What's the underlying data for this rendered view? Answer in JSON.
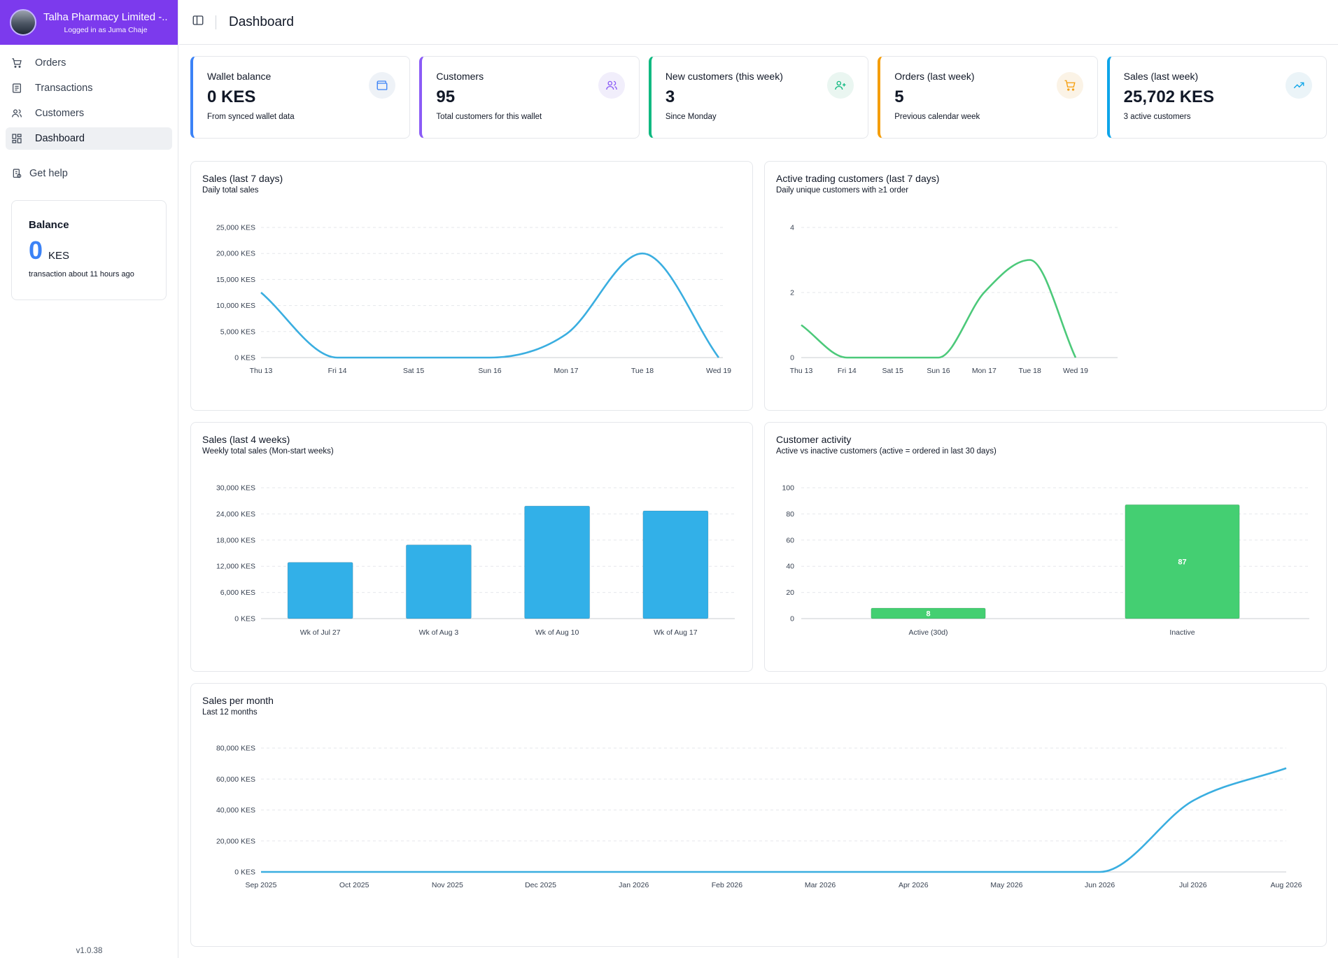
{
  "sidebar": {
    "brand_name": "Talha Pharmacy Limited -...",
    "brand_sub": "Logged in as Juma Chaje",
    "nav": [
      {
        "label": "Orders",
        "icon": "cart-icon"
      },
      {
        "label": "Transactions",
        "icon": "receipt-icon"
      },
      {
        "label": "Customers",
        "icon": "users-icon"
      },
      {
        "label": "Dashboard",
        "icon": "grid-icon"
      }
    ],
    "help_label": "Get help",
    "balance": {
      "title": "Balance",
      "value": "0",
      "unit": "KES",
      "note": "transaction about 11 hours ago"
    },
    "version": "v1.0.38"
  },
  "header": {
    "title": "Dashboard"
  },
  "stats": [
    {
      "label": "Wallet balance",
      "value": "0 KES",
      "note": "From synced wallet data",
      "accent": "#3b82f6",
      "icon": "wallet-icon"
    },
    {
      "label": "Customers",
      "value": "95",
      "note": "Total customers for this wallet",
      "accent": "#8b5cf6",
      "icon": "users-icon"
    },
    {
      "label": "New customers (this week)",
      "value": "3",
      "note": "Since Monday",
      "accent": "#10b981",
      "icon": "user-plus-icon"
    },
    {
      "label": "Orders (last week)",
      "value": "5",
      "note": "Previous calendar week",
      "accent": "#f59e0b",
      "icon": "cart-icon"
    },
    {
      "label": "Sales (last week)",
      "value": "25,702 KES",
      "note": "3 active customers",
      "accent": "#0ea5e9",
      "icon": "trending-up-icon"
    }
  ],
  "chart_data": [
    {
      "id": "sales7",
      "type": "line",
      "title": "Sales (last 7 days)",
      "subtitle": "Daily total sales",
      "categories": [
        "Thu 13",
        "Fri 14",
        "Sat 15",
        "Sun 16",
        "Mon 17",
        "Tue 18",
        "Wed 19"
      ],
      "values": [
        12500,
        0,
        0,
        0,
        4500,
        20000,
        0
      ],
      "yticks": [
        "0 KES",
        "5,000 KES",
        "10,000 KES",
        "15,000 KES",
        "20,000 KES",
        "25,000 KES"
      ],
      "ylim": [
        0,
        25000
      ],
      "color": "#3aaee0",
      "grid": true
    },
    {
      "id": "active7",
      "type": "line",
      "title": "Active trading customers (last 7 days)",
      "subtitle": "Daily unique customers with ≥1 order",
      "categories": [
        "Thu 13",
        "Fri 14",
        "Sat 15",
        "Sun 16",
        "Mon 17",
        "Tue 18",
        "Wed 19"
      ],
      "values": [
        1,
        0,
        0,
        0,
        2,
        3,
        0
      ],
      "yticks": [
        "0",
        "2",
        "4"
      ],
      "ylim": [
        0,
        4
      ],
      "color": "#4cc97a",
      "grid": true
    },
    {
      "id": "sales4w",
      "type": "bar",
      "title": "Sales (last 4 weeks)",
      "subtitle": "Weekly total sales (Mon-start weeks)",
      "categories": [
        "Wk of Jul 27",
        "Wk of Aug 3",
        "Wk of Aug 10",
        "Wk of Aug 17"
      ],
      "values": [
        12900,
        16900,
        25800,
        24700
      ],
      "yticks": [
        "0 KES",
        "6,000 KES",
        "12,000 KES",
        "18,000 KES",
        "24,000 KES",
        "30,000 KES"
      ],
      "ylim": [
        0,
        30000
      ],
      "color": "#32b0e8",
      "grid": true
    },
    {
      "id": "activity",
      "type": "bar",
      "title": "Customer activity",
      "subtitle": "Active vs inactive customers (active = ordered in last 30 days)",
      "categories": [
        "Active (30d)",
        "Inactive"
      ],
      "values": [
        8,
        87
      ],
      "data_labels": [
        "8",
        "87"
      ],
      "yticks": [
        "0",
        "20",
        "40",
        "60",
        "80",
        "100"
      ],
      "ylim": [
        0,
        100
      ],
      "color": "#44cf72",
      "grid": true
    },
    {
      "id": "monthly",
      "type": "line",
      "title": "Sales per month",
      "subtitle": "Last 12 months",
      "categories": [
        "Sep 2025",
        "Oct 2025",
        "Nov 2025",
        "Dec 2025",
        "Jan 2026",
        "Feb 2026",
        "Mar 2026",
        "Apr 2026",
        "May 2026",
        "Jun 2026",
        "Jul 2026",
        "Aug 2026"
      ],
      "values": [
        0,
        0,
        0,
        0,
        0,
        0,
        0,
        0,
        0,
        0,
        46000,
        67000
      ],
      "yticks": [
        "0 KES",
        "20,000 KES",
        "40,000 KES",
        "60,000 KES",
        "80,000 KES"
      ],
      "ylim": [
        0,
        80000
      ],
      "color": "#3aaee0",
      "grid": true
    }
  ]
}
